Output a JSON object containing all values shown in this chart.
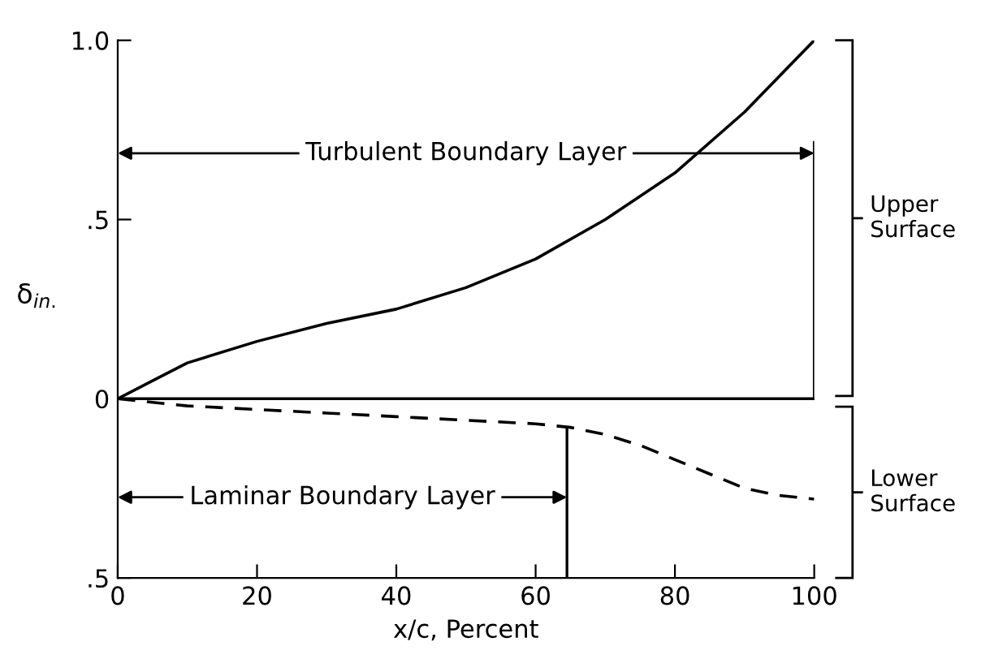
{
  "chart_data": {
    "type": "line",
    "xlabel": "x/c, Percent",
    "ylabel": "δ$_{in.}$",
    "series": [
      {
        "color": "#000000",
        "line_style": "solid",
        "x": [
          0,
          5,
          10,
          20,
          30,
          40,
          50,
          60,
          70,
          80,
          90,
          100
        ],
        "values": [
          0,
          0.05,
          0.1,
          0.16,
          0.21,
          0.25,
          0.31,
          0.39,
          0.5,
          0.63,
          0.8,
          1.0
        ]
      },
      {
        "color": "#000000",
        "line_style": "dashed",
        "x": [
          0,
          10,
          20,
          30,
          40,
          50,
          60,
          65,
          70,
          75,
          80,
          85,
          90,
          95,
          100
        ],
        "values": [
          0,
          -0.02,
          -0.03,
          -0.04,
          -0.05,
          -0.06,
          -0.07,
          -0.08,
          -0.1,
          -0.13,
          -0.17,
          -0.21,
          -0.25,
          -0.27,
          -0.28
        ]
      }
    ],
    "xlim": [
      0,
      100
    ],
    "xticks": [
      0,
      20,
      40,
      60,
      80,
      100
    ],
    "ylim": [
      -0.5,
      1.0
    ],
    "yticks": [
      {
        "value": 1.0,
        "label": "1.0"
      },
      {
        "value": 0.5,
        "label": ".5"
      },
      0,
      {
        "value": -0.5,
        "label": ".5"
      }
    ],
    "ref_lines": [
      {
        "axis": "y",
        "value": 0,
        "color": "#000000"
      },
      {
        "axis": "x",
        "value": 100,
        "color": "#000000"
      },
      {
        "axis": "x",
        "value": 64.5,
        "color": "#000000"
      }
    ],
    "annotations": [
      {
        "text": "Turbulent Boundary Layer",
        "x": 100,
        "y": 0.685
      },
      {
        "text": "Laminar Boundary Layer",
        "x": 64.5,
        "y": -0.275
      },
      "Upper Surface",
      "Lower Surface"
    ],
    "grid": false,
    "legend": false,
    "marker": "none"
  }
}
